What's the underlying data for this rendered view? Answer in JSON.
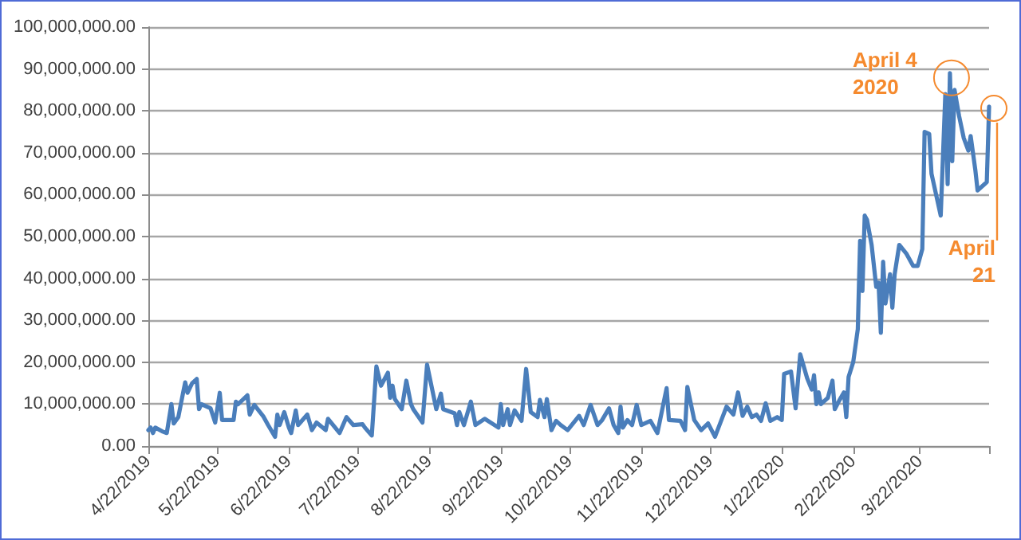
{
  "chart_data": {
    "type": "line",
    "x": [
      "2019-04-22",
      "2019-04-23",
      "2019-04-24",
      "2019-04-25",
      "2019-04-28",
      "2019-04-30",
      "2019-05-02",
      "2019-05-03",
      "2019-05-05",
      "2019-05-07",
      "2019-05-08",
      "2019-05-09",
      "2019-05-11",
      "2019-05-13",
      "2019-05-14",
      "2019-05-15",
      "2019-05-19",
      "2019-05-21",
      "2019-05-23",
      "2019-05-24",
      "2019-05-29",
      "2019-05-30",
      "2019-05-31",
      "2019-06-04",
      "2019-06-05",
      "2019-06-07",
      "2019-06-11",
      "2019-06-13",
      "2019-06-16",
      "2019-06-17",
      "2019-06-18",
      "2019-06-20",
      "2019-06-22",
      "2019-06-23",
      "2019-06-25",
      "2019-06-26",
      "2019-06-30",
      "2019-07-02",
      "2019-07-04",
      "2019-07-08",
      "2019-07-09",
      "2019-07-14",
      "2019-07-17",
      "2019-07-20",
      "2019-07-24",
      "2019-07-25",
      "2019-07-28",
      "2019-07-30",
      "2019-08-01",
      "2019-08-04",
      "2019-08-05",
      "2019-08-06",
      "2019-08-07",
      "2019-08-10",
      "2019-08-12",
      "2019-08-14",
      "2019-08-15",
      "2019-08-19",
      "2019-08-21",
      "2019-08-25",
      "2019-08-27",
      "2019-08-28",
      "2019-09-02",
      "2019-09-03",
      "2019-09-04",
      "2019-09-06",
      "2019-09-09",
      "2019-09-11",
      "2019-09-15",
      "2019-09-21",
      "2019-09-22",
      "2019-09-23",
      "2019-09-25",
      "2019-09-26",
      "2019-09-28",
      "2019-10-01",
      "2019-10-03",
      "2019-10-05",
      "2019-10-08",
      "2019-10-09",
      "2019-10-11",
      "2019-10-12",
      "2019-10-14",
      "2019-10-16",
      "2019-10-18",
      "2019-10-21",
      "2019-10-26",
      "2019-10-28",
      "2019-10-31",
      "2019-11-03",
      "2019-11-05",
      "2019-11-08",
      "2019-11-10",
      "2019-11-12",
      "2019-11-13",
      "2019-11-14",
      "2019-11-16",
      "2019-11-18",
      "2019-11-20",
      "2019-11-22",
      "2019-11-26",
      "2019-11-29",
      "2019-12-03",
      "2019-12-04",
      "2019-12-09",
      "2019-12-11",
      "2019-12-12",
      "2019-12-15",
      "2019-12-18",
      "2019-12-21",
      "2019-12-24",
      "2019-12-29",
      "2020-01-01",
      "2020-01-03",
      "2020-01-05",
      "2020-01-07",
      "2020-01-09",
      "2020-01-11",
      "2020-01-13",
      "2020-01-15",
      "2020-01-17",
      "2020-01-20",
      "2020-01-22",
      "2020-01-23",
      "2020-01-26",
      "2020-01-28",
      "2020-01-30",
      "2020-02-02",
      "2020-02-04",
      "2020-02-05",
      "2020-02-06",
      "2020-02-07",
      "2020-02-08",
      "2020-02-11",
      "2020-02-13",
      "2020-02-14",
      "2020-02-16",
      "2020-02-18",
      "2020-02-19",
      "2020-02-20",
      "2020-02-22",
      "2020-02-24",
      "2020-02-25",
      "2020-02-26",
      "2020-02-27",
      "2020-02-28",
      "2020-03-01",
      "2020-03-03",
      "2020-03-04",
      "2020-03-05",
      "2020-03-06",
      "2020-03-07",
      "2020-03-09",
      "2020-03-10",
      "2020-03-11",
      "2020-03-13",
      "2020-03-16",
      "2020-03-19",
      "2020-03-21",
      "2020-03-23",
      "2020-03-24",
      "2020-03-26",
      "2020-03-27",
      "2020-03-28",
      "2020-03-31",
      "2020-04-02",
      "2020-04-03",
      "2020-04-04",
      "2020-04-05",
      "2020-04-06",
      "2020-04-08",
      "2020-04-10",
      "2020-04-12",
      "2020-04-13",
      "2020-04-15",
      "2020-04-16",
      "2020-04-19",
      "2020-04-20",
      "2020-04-21"
    ],
    "series": [
      {
        "color": "#4a7ebb",
        "values": [
          3800000,
          4400000,
          3100000,
          4400000,
          3500000,
          3100000,
          10000000,
          5400000,
          6900000,
          12500000,
          15200000,
          12700000,
          15000000,
          16000000,
          8800000,
          10000000,
          9000000,
          5600000,
          12700000,
          6200000,
          6200000,
          10600000,
          10000000,
          12100000,
          7500000,
          9800000,
          7000000,
          5000000,
          2200000,
          7500000,
          5000000,
          8100000,
          4400000,
          3100000,
          8500000,
          5000000,
          7500000,
          3800000,
          5600000,
          3800000,
          6500000,
          3100000,
          6900000,
          5000000,
          5200000,
          4400000,
          2500000,
          19000000,
          14400000,
          17500000,
          11500000,
          14400000,
          11200000,
          8800000,
          15600000,
          10000000,
          8800000,
          5600000,
          19400000,
          8800000,
          12500000,
          8800000,
          7800000,
          5000000,
          8100000,
          5000000,
          10600000,
          5000000,
          6500000,
          4400000,
          10000000,
          5000000,
          8800000,
          5000000,
          8500000,
          6000000,
          18400000,
          8100000,
          6900000,
          11000000,
          6900000,
          11200000,
          3800000,
          6000000,
          5000000,
          3800000,
          7200000,
          5000000,
          9800000,
          5000000,
          6200000,
          9000000,
          5000000,
          3100000,
          9400000,
          4400000,
          6200000,
          5000000,
          9800000,
          5000000,
          6000000,
          3100000,
          13800000,
          6200000,
          6000000,
          3800000,
          14100000,
          6200000,
          3800000,
          5400000,
          2200000,
          9400000,
          7500000,
          12800000,
          7200000,
          9400000,
          6900000,
          7500000,
          6000000,
          10200000,
          6000000,
          6900000,
          6200000,
          17200000,
          17800000,
          9000000,
          21900000,
          16200000,
          13500000,
          16900000,
          10000000,
          12800000,
          10000000,
          11500000,
          15600000,
          8800000,
          10900000,
          12800000,
          6900000,
          16500000,
          20000000,
          27900000,
          49000000,
          37000000,
          55000000,
          54000000,
          48000000,
          38000000,
          39000000,
          27000000,
          44000000,
          34000000,
          41000000,
          33000000,
          41000000,
          48000000,
          46000000,
          43000000,
          43000000,
          47000000,
          75000000,
          74500000,
          65000000,
          62500000,
          55000000,
          84000000,
          62500000,
          89000000,
          68000000,
          85000000,
          78700000,
          73500000,
          70500000,
          74000000,
          66000000,
          61000000,
          62500000,
          63000000,
          81000000
        ]
      }
    ],
    "xlim": [
      "2019-04-22",
      "2020-04-21"
    ],
    "xticks": [
      {
        "value": "2019-04-22",
        "label": "4/22/2019"
      },
      {
        "value": "2019-05-22",
        "label": "5/22/2019"
      },
      {
        "value": "2019-06-22",
        "label": "6/22/2019"
      },
      {
        "value": "2019-07-22",
        "label": "7/22/2019"
      },
      {
        "value": "2019-08-22",
        "label": "8/22/2019"
      },
      {
        "value": "2019-09-22",
        "label": "9/22/2019"
      },
      {
        "value": "2019-10-22",
        "label": "10/22/2019"
      },
      {
        "value": "2019-11-22",
        "label": "11/22/2019"
      },
      {
        "value": "2019-12-22",
        "label": "12/22/2019"
      },
      {
        "value": "2020-01-22",
        "label": "1/22/2020"
      },
      {
        "value": "2020-02-22",
        "label": "2/22/2020"
      },
      {
        "value": "2020-03-22",
        "label": "3/22/2020"
      },
      {
        "value": "2020-04-21",
        "label": null
      }
    ],
    "ylim": [
      0,
      100000000
    ],
    "yticks": [
      {
        "value": 0,
        "label": "0.00"
      },
      {
        "value": 10000000,
        "label": "10,000,000.00"
      },
      {
        "value": 20000000,
        "label": "20,000,000.00"
      },
      {
        "value": 30000000,
        "label": "30,000,000.00"
      },
      {
        "value": 40000000,
        "label": "40,000,000.00"
      },
      {
        "value": 50000000,
        "label": "50,000,000.00"
      },
      {
        "value": 60000000,
        "label": "60,000,000.00"
      },
      {
        "value": 70000000,
        "label": "70,000,000.00"
      },
      {
        "value": 80000000,
        "label": "80,000,000.00"
      },
      {
        "value": 90000000,
        "label": "90,000,000.00"
      },
      {
        "value": 100000000,
        "label": "100,000,000.00"
      }
    ],
    "grid": "y",
    "marker": "none",
    "line_style": "solid",
    "annotations": [
      {
        "text": "April 4 2020",
        "x": "2020-04-04",
        "y": 89000000
      },
      "April 21"
    ]
  }
}
